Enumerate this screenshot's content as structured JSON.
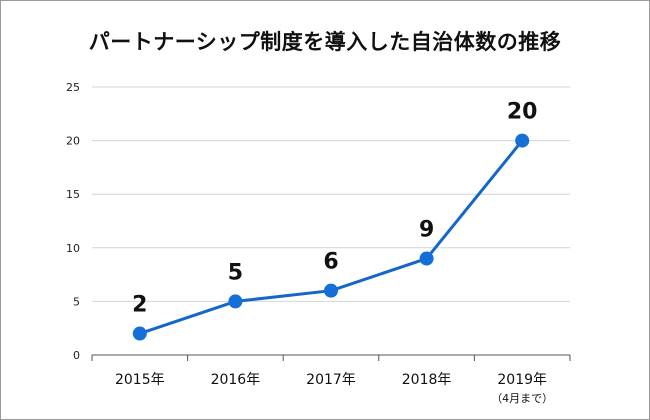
{
  "title": "パートナーシップ制度を導入した自治体数の推移",
  "chart_data": {
    "type": "line",
    "categories": [
      "2015年",
      "2016年",
      "2017年",
      "2018年",
      "2019年"
    ],
    "category_notes": [
      "",
      "",
      "",
      "",
      "（4月まで）"
    ],
    "series": [
      {
        "values": [
          2,
          5,
          6,
          9,
          20
        ]
      }
    ],
    "data_labels": [
      "2",
      "5",
      "6",
      "9",
      "20"
    ],
    "y_ticks": [
      "0",
      "5",
      "10",
      "15",
      "20",
      "25"
    ],
    "ylim": [
      0,
      25
    ],
    "grid": true,
    "legend": "none",
    "colors": {
      "line": "#1467c7",
      "marker": "#1470d6",
      "grid": "#d4d4d4",
      "axis": "#555555"
    }
  }
}
